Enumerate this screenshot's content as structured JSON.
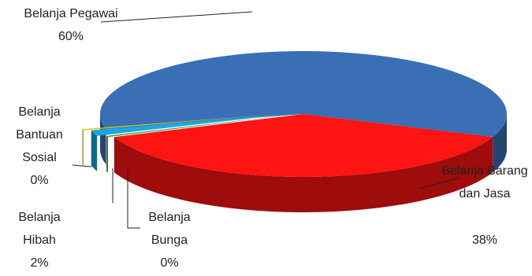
{
  "chart_data": {
    "type": "pie",
    "categories": [
      "Belanja Pegawai",
      "Belanja Barang dan Jasa",
      "Belanja Bunga",
      "Belanja Hibah",
      "Belanja Bantuan Sosial"
    ],
    "values": [
      59.8,
      38.1,
      0.3,
      1.5,
      0.3
    ],
    "value_labels": [
      "60%",
      "38%",
      "0%",
      "2%",
      "0%"
    ],
    "colors": [
      "#3a6fb5",
      "#ff1414",
      "#2e9e3a",
      "#1ea6e0",
      "#d2d200"
    ]
  }
}
